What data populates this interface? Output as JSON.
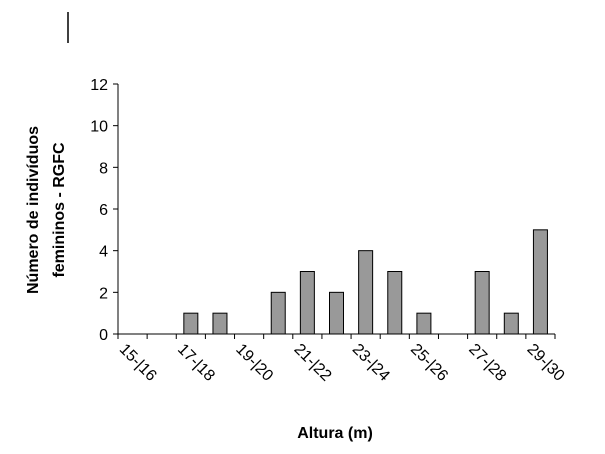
{
  "chart_data": {
    "type": "bar",
    "xlabel": "Altura (m)",
    "ylabel": [
      "Número de indivíduos",
      "femininos - RGFC"
    ],
    "categories": [
      "15-|16",
      null,
      "17-|18",
      null,
      "19-|20",
      null,
      "21-|22",
      null,
      "23-|24",
      null,
      "25-|26",
      null,
      "27-|28",
      null,
      "29-|30"
    ],
    "values": [
      0,
      0,
      1,
      1,
      0,
      2,
      3,
      2,
      4,
      3,
      1,
      0,
      3,
      1,
      5
    ],
    "color": "#999999",
    "ylim": [
      0,
      12
    ],
    "yticks": [
      0,
      2,
      4,
      6,
      8,
      10,
      12
    ]
  }
}
